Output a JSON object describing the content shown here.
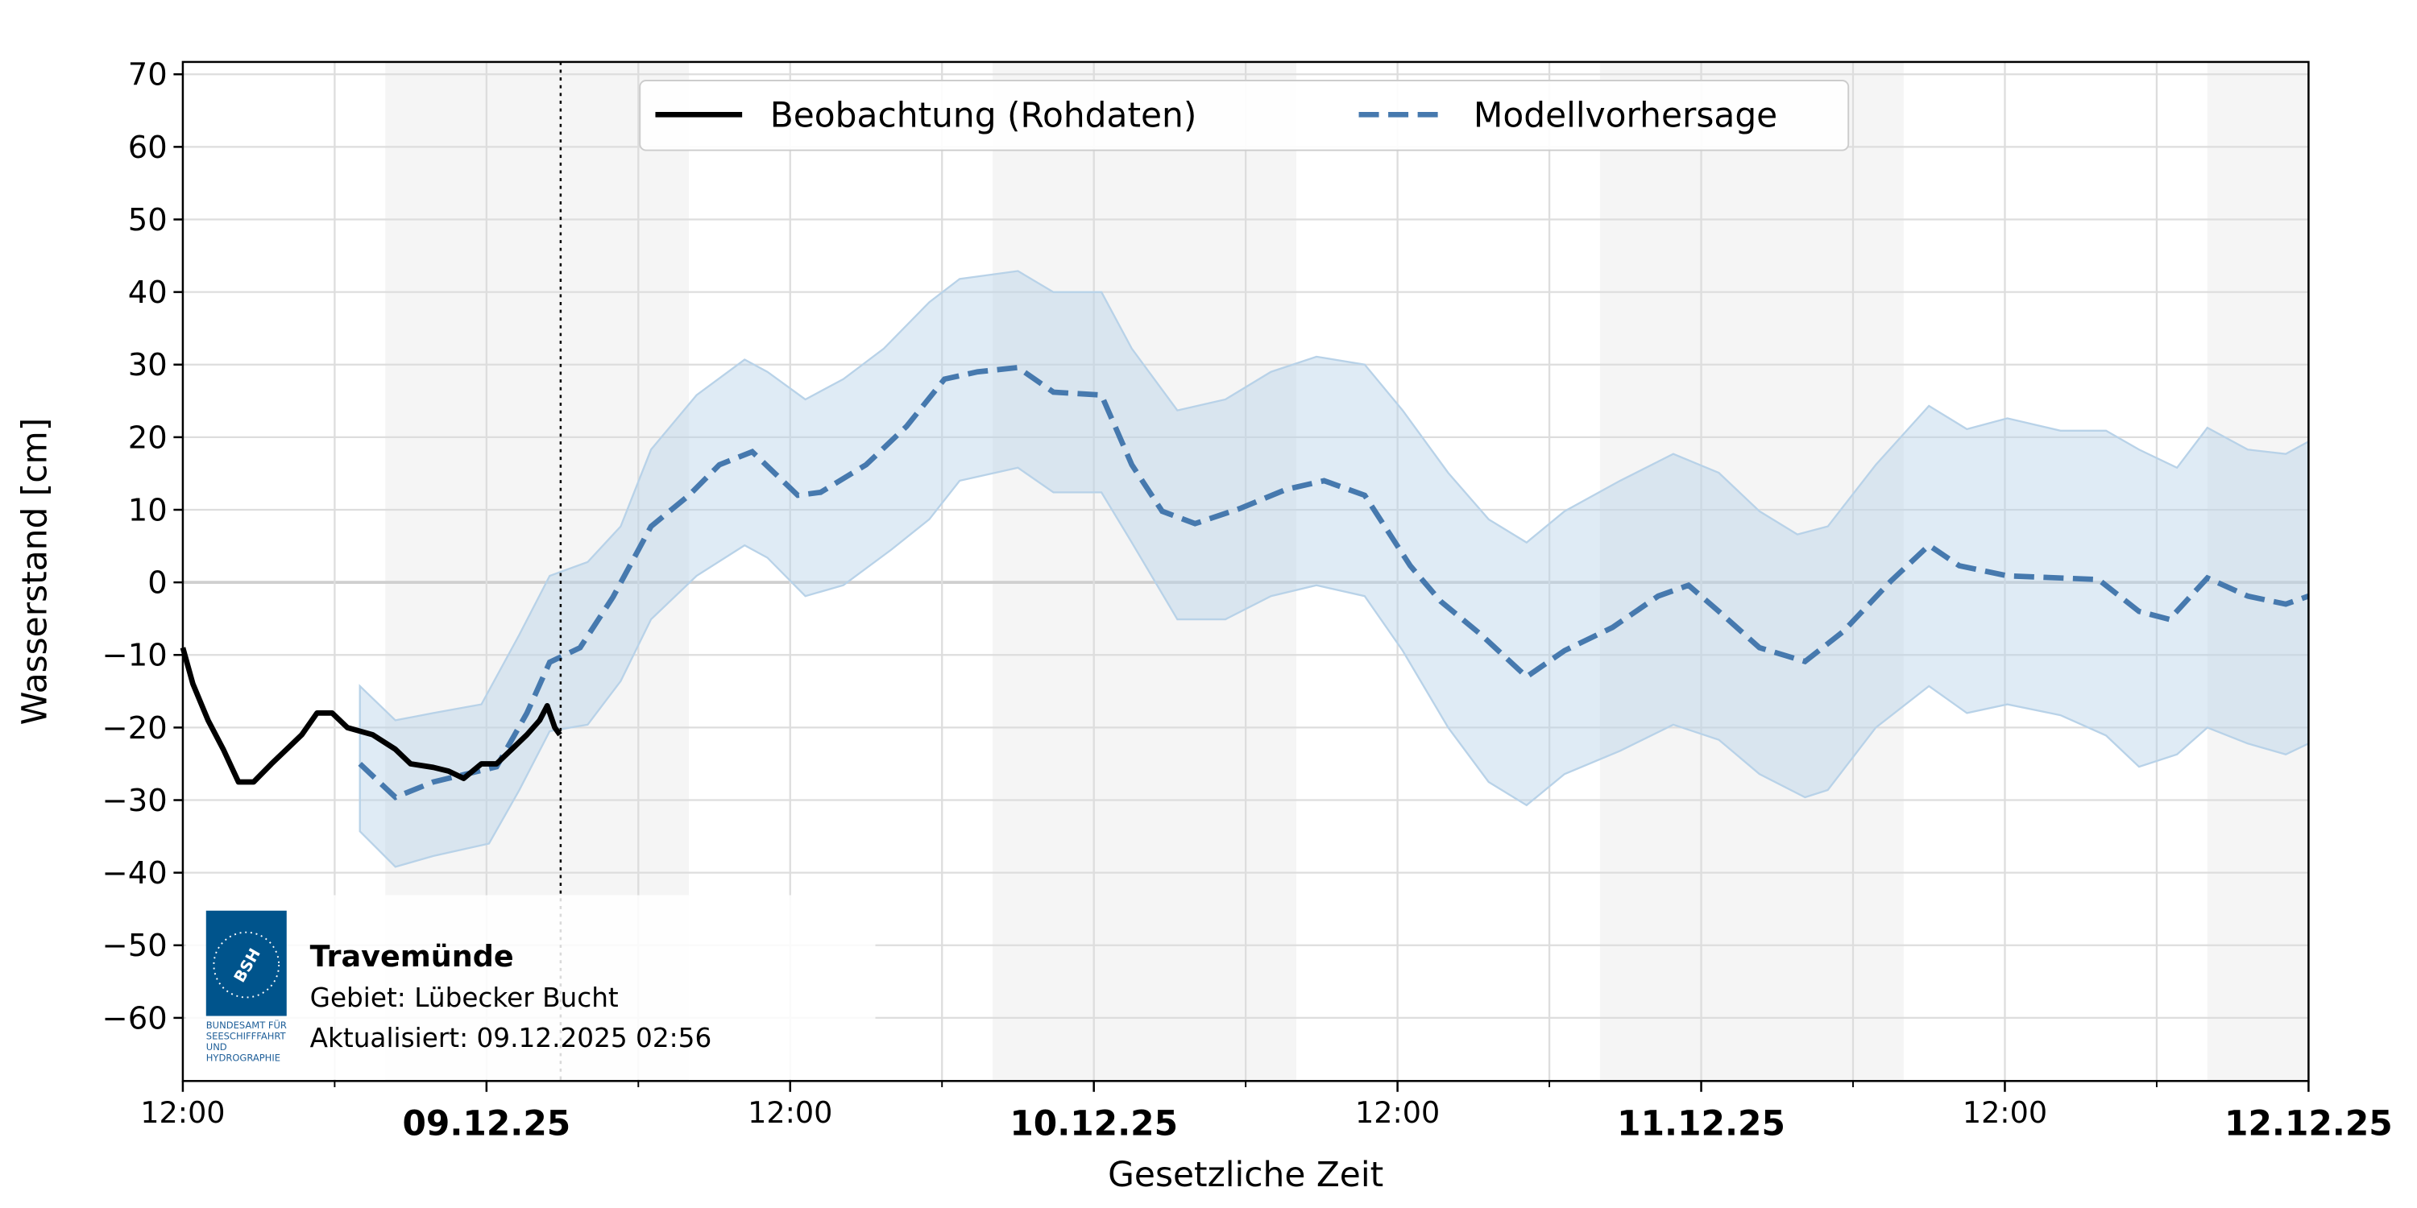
{
  "chart_data": {
    "type": "line",
    "xlabel": "Gesetzliche Zeit",
    "ylabel": "Wasserstand [cm]",
    "ylim": [
      -68.7,
      71.7
    ],
    "x_unit": "hours since 08.12.2025 12:00",
    "xlim": [
      0,
      84
    ],
    "grid": true,
    "y_ticks": [
      -60,
      -50,
      -40,
      -30,
      -20,
      -10,
      0,
      10,
      20,
      30,
      40,
      50,
      60,
      70
    ],
    "y_tick_labels": [
      "−60",
      "−50",
      "−40",
      "−30",
      "−20",
      "−10",
      "0",
      "10",
      "20",
      "30",
      "40",
      "50",
      "60",
      "70"
    ],
    "x_ticks": [
      {
        "h": 0,
        "label": "12:00",
        "major": false
      },
      {
        "h": 12,
        "label": "09.12.25",
        "major": true
      },
      {
        "h": 24,
        "label": "12:00",
        "major": false
      },
      {
        "h": 36,
        "label": "10.12.25",
        "major": true
      },
      {
        "h": 48,
        "label": "12:00",
        "major": false
      },
      {
        "h": 60,
        "label": "11.12.25",
        "major": true
      },
      {
        "h": 72,
        "label": "12:00",
        "major": false
      },
      {
        "h": 84,
        "label": "12.12.25",
        "major": true
      }
    ],
    "night_shading_hours": [
      [
        8,
        20
      ],
      [
        32,
        44
      ],
      [
        56,
        68
      ],
      [
        80,
        84
      ]
    ],
    "now_marker_hour": 14.93,
    "legend_position": "top-center",
    "legend": [
      "Beobachtung (Rohdaten)",
      "Modellvorhersage"
    ],
    "series": [
      {
        "name": "Beobachtung (Rohdaten)",
        "color": "#000000",
        "style": "solid",
        "points": [
          [
            0,
            -9
          ],
          [
            0.4,
            -14
          ],
          [
            1,
            -19
          ],
          [
            1.6,
            -23
          ],
          [
            2.2,
            -27.5
          ],
          [
            2.8,
            -27.5
          ],
          [
            3.5,
            -25
          ],
          [
            4.1,
            -23
          ],
          [
            4.7,
            -21
          ],
          [
            5.3,
            -18
          ],
          [
            5.9,
            -18
          ],
          [
            6.5,
            -20
          ],
          [
            7.5,
            -21
          ],
          [
            8.4,
            -23
          ],
          [
            9,
            -25
          ],
          [
            9.9,
            -25.5
          ],
          [
            10.5,
            -26
          ],
          [
            11.1,
            -27
          ],
          [
            11.8,
            -25
          ],
          [
            12.4,
            -25
          ],
          [
            13,
            -23
          ],
          [
            13.6,
            -21
          ],
          [
            14.1,
            -19
          ],
          [
            14.4,
            -17
          ],
          [
            14.7,
            -20
          ],
          [
            14.9,
            -21
          ]
        ]
      },
      {
        "name": "Modellvorhersage",
        "color": "#4679ae",
        "style": "dashed",
        "points": [
          [
            7,
            -25
          ],
          [
            8.4,
            -29.6
          ],
          [
            9.9,
            -27.5
          ],
          [
            11.1,
            -26.5
          ],
          [
            12.4,
            -25.4
          ],
          [
            13.6,
            -18
          ],
          [
            14.5,
            -11
          ],
          [
            15.7,
            -9
          ],
          [
            17,
            -2
          ],
          [
            18.5,
            7.7
          ],
          [
            20,
            12
          ],
          [
            21.2,
            16.2
          ],
          [
            22.5,
            18
          ],
          [
            23.4,
            15
          ],
          [
            24.3,
            12
          ],
          [
            25.2,
            12.4
          ],
          [
            27,
            16.2
          ],
          [
            28.6,
            21.5
          ],
          [
            30.1,
            28
          ],
          [
            31.4,
            29
          ],
          [
            33,
            29.6
          ],
          [
            34.4,
            26.2
          ],
          [
            36.3,
            25.8
          ],
          [
            37.5,
            16.2
          ],
          [
            38.7,
            9.8
          ],
          [
            40,
            8.1
          ],
          [
            41.8,
            10.2
          ],
          [
            43.6,
            12.8
          ],
          [
            45.1,
            14
          ],
          [
            46.7,
            12
          ],
          [
            48.5,
            2.3
          ],
          [
            49.7,
            -2.6
          ],
          [
            51.3,
            -7.2
          ],
          [
            53.1,
            -13
          ],
          [
            54.6,
            -9.4
          ],
          [
            56.5,
            -6.2
          ],
          [
            58.3,
            -1.9
          ],
          [
            59.5,
            -0.4
          ],
          [
            60.7,
            -4
          ],
          [
            62.3,
            -9
          ],
          [
            64.1,
            -10.9
          ],
          [
            65.6,
            -6.8
          ],
          [
            67.5,
            0.2
          ],
          [
            69,
            5.1
          ],
          [
            70.2,
            2.3
          ],
          [
            72.1,
            0.9
          ],
          [
            74.2,
            0.6
          ],
          [
            75.7,
            0.4
          ],
          [
            77.3,
            -4
          ],
          [
            78.5,
            -5.1
          ],
          [
            80,
            0.6
          ],
          [
            81.6,
            -1.9
          ],
          [
            83.1,
            -3
          ],
          [
            84,
            -1.9
          ]
        ]
      }
    ],
    "band": {
      "color": "#b8d2e8",
      "upper": [
        [
          7,
          -14.3
        ],
        [
          8.4,
          -19
        ],
        [
          9.9,
          -18
        ],
        [
          11.8,
          -16.8
        ],
        [
          13.3,
          -7.2
        ],
        [
          14.5,
          0.9
        ],
        [
          16,
          2.8
        ],
        [
          17.3,
          7.7
        ],
        [
          18.5,
          18.3
        ],
        [
          20.3,
          25.8
        ],
        [
          22.2,
          30.7
        ],
        [
          23.1,
          29
        ],
        [
          24.6,
          25.2
        ],
        [
          26.1,
          28
        ],
        [
          27.7,
          32.2
        ],
        [
          29.5,
          38.6
        ],
        [
          30.7,
          41.8
        ],
        [
          33,
          42.9
        ],
        [
          34.4,
          40
        ],
        [
          36.3,
          40
        ],
        [
          37.5,
          32.2
        ],
        [
          39.3,
          23.7
        ],
        [
          41.2,
          25.2
        ],
        [
          43,
          29
        ],
        [
          44.8,
          31.1
        ],
        [
          46.7,
          30
        ],
        [
          48.2,
          23.7
        ],
        [
          50,
          15.1
        ],
        [
          51.6,
          8.7
        ],
        [
          53.1,
          5.5
        ],
        [
          54.6,
          9.8
        ],
        [
          56.8,
          14
        ],
        [
          58.9,
          17.7
        ],
        [
          60.7,
          15.1
        ],
        [
          62.3,
          9.8
        ],
        [
          63.8,
          6.6
        ],
        [
          65,
          7.7
        ],
        [
          66.9,
          16.2
        ],
        [
          69,
          24.3
        ],
        [
          70.5,
          21.1
        ],
        [
          72.1,
          22.6
        ],
        [
          74.2,
          20.9
        ],
        [
          76,
          20.9
        ],
        [
          77.3,
          18.3
        ],
        [
          78.8,
          15.8
        ],
        [
          80,
          21.3
        ],
        [
          81.6,
          18.3
        ],
        [
          83.1,
          17.7
        ],
        [
          84,
          19.4
        ]
      ],
      "lower": [
        [
          7,
          -34.3
        ],
        [
          8.4,
          -39.2
        ],
        [
          9.9,
          -37.7
        ],
        [
          12.1,
          -36
        ],
        [
          13.3,
          -28.6
        ],
        [
          14.5,
          -20.5
        ],
        [
          16,
          -19.6
        ],
        [
          17.3,
          -13.6
        ],
        [
          18.5,
          -5.1
        ],
        [
          20.3,
          0.9
        ],
        [
          22.2,
          5.1
        ],
        [
          23.1,
          3.4
        ],
        [
          24.6,
          -1.9
        ],
        [
          26.1,
          -0.4
        ],
        [
          28,
          4.5
        ],
        [
          29.5,
          8.7
        ],
        [
          30.7,
          14
        ],
        [
          33,
          15.8
        ],
        [
          34.4,
          12.4
        ],
        [
          36.3,
          12.4
        ],
        [
          37.5,
          5.5
        ],
        [
          39.3,
          -5.1
        ],
        [
          41.2,
          -5.1
        ],
        [
          43,
          -1.9
        ],
        [
          44.8,
          -0.4
        ],
        [
          46.7,
          -1.9
        ],
        [
          48.2,
          -9.4
        ],
        [
          50,
          -20
        ],
        [
          51.6,
          -27.5
        ],
        [
          53.1,
          -30.7
        ],
        [
          54.6,
          -26.4
        ],
        [
          56.8,
          -23.2
        ],
        [
          58.9,
          -19.6
        ],
        [
          60.7,
          -21.7
        ],
        [
          62.3,
          -26.4
        ],
        [
          64.1,
          -29.6
        ],
        [
          65,
          -28.6
        ],
        [
          66.9,
          -20
        ],
        [
          69,
          -14.3
        ],
        [
          70.5,
          -18
        ],
        [
          72.1,
          -16.8
        ],
        [
          74.2,
          -18.3
        ],
        [
          76,
          -21.1
        ],
        [
          77.3,
          -25.4
        ],
        [
          78.8,
          -23.7
        ],
        [
          80,
          -20
        ],
        [
          81.6,
          -22.2
        ],
        [
          83.1,
          -23.7
        ],
        [
          84,
          -22.2
        ]
      ]
    }
  },
  "info": {
    "station": "Travemünde",
    "area": "Gebiet: Lübecker Bucht",
    "updated": "Aktualisiert: 09.12.2025 02:56",
    "logo_text": "BSH",
    "logo_caption": [
      "BUNDESAMT FÜR",
      "SEESCHIFFFAHRT",
      "UND",
      "HYDROGRAPHIE"
    ],
    "logo_color": "#00548c"
  }
}
